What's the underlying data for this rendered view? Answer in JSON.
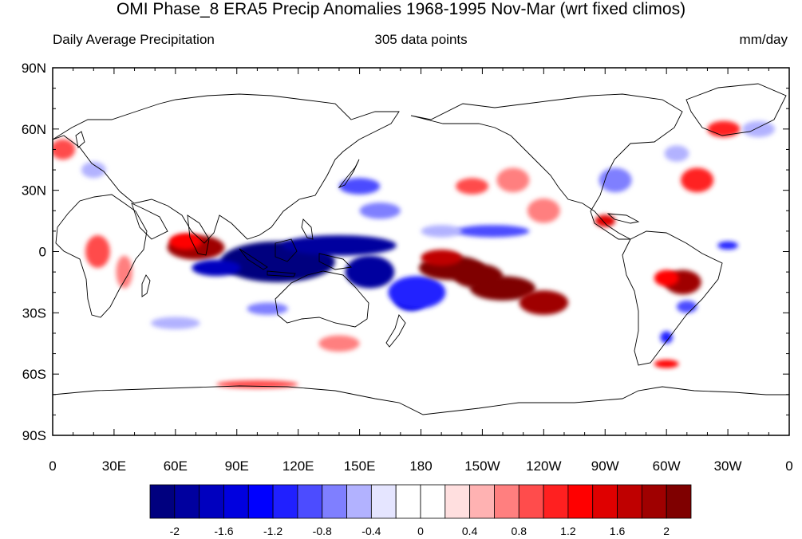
{
  "title": "OMI Phase_8 ERA5 Precip Anomalies 1968-1995 Nov-Mar (wrt fixed climos)",
  "subtitle_left": "Daily Average Precipitation",
  "subtitle_center": "305 data points",
  "subtitle_right": "mm/day",
  "map": {
    "lon_range": [
      0,
      360
    ],
    "lat_range": [
      -90,
      90
    ],
    "lat_ticks": [
      {
        "lat": 90,
        "label": "90N"
      },
      {
        "lat": 60,
        "label": "60N"
      },
      {
        "lat": 30,
        "label": "30N"
      },
      {
        "lat": 0,
        "label": "0"
      },
      {
        "lat": -30,
        "label": "30S"
      },
      {
        "lat": -60,
        "label": "60S"
      },
      {
        "lat": -90,
        "label": "90S"
      }
    ],
    "lon_ticks": [
      {
        "lon": 0,
        "label": "0"
      },
      {
        "lon": 30,
        "label": "30E"
      },
      {
        "lon": 60,
        "label": "60E"
      },
      {
        "lon": 90,
        "label": "90E"
      },
      {
        "lon": 120,
        "label": "120E"
      },
      {
        "lon": 150,
        "label": "150E"
      },
      {
        "lon": 180,
        "label": "180"
      },
      {
        "lon": 210,
        "label": "150W"
      },
      {
        "lon": 240,
        "label": "120W"
      },
      {
        "lon": 270,
        "label": "90W"
      },
      {
        "lon": 300,
        "label": "60W"
      },
      {
        "lon": 330,
        "label": "30W"
      },
      {
        "lon": 360,
        "label": "0"
      }
    ]
  },
  "colorbar": {
    "colors": [
      "#00007f",
      "#00009f",
      "#0000bf",
      "#0000df",
      "#0000ff",
      "#2020ff",
      "#4c4cff",
      "#7f7fff",
      "#b2b2ff",
      "#e5e5ff",
      "#ffffff",
      "#ffffff",
      "#ffdfdf",
      "#ffb2b2",
      "#ff7f7f",
      "#ff4c4c",
      "#ff2020",
      "#ff0000",
      "#df0000",
      "#bf0000",
      "#9f0000",
      "#7f0000"
    ],
    "labels": [
      {
        "index": 1,
        "text": "-2"
      },
      {
        "index": 3,
        "text": "-1.6"
      },
      {
        "index": 5,
        "text": "-1.2"
      },
      {
        "index": 7,
        "text": "-0.8"
      },
      {
        "index": 9,
        "text": "-0.4"
      },
      {
        "index": 11,
        "text": "0"
      },
      {
        "index": 13,
        "text": "0.4"
      },
      {
        "index": 15,
        "text": "0.8"
      },
      {
        "index": 17,
        "text": "1.2"
      },
      {
        "index": 19,
        "text": "1.6"
      },
      {
        "index": 21,
        "text": "2"
      }
    ]
  },
  "chart_data": {
    "type": "heatmap",
    "variable": "precipitation anomaly",
    "units": "mm/day",
    "levels": [
      -2,
      -1.8,
      -1.6,
      -1.4,
      -1.2,
      -1,
      -0.8,
      -0.6,
      -0.4,
      -0.2,
      0,
      0.2,
      0.4,
      0.6,
      0.8,
      1,
      1.2,
      1.4,
      1.6,
      1.8,
      2
    ],
    "anomaly_regions": [
      {
        "lon": 70,
        "lat": 2,
        "dlon": 14,
        "dlat": 6,
        "value": 1.8
      },
      {
        "lon": 65,
        "lat": 5,
        "dlon": 8,
        "dlat": 4,
        "value": 1.2
      },
      {
        "lon": 22,
        "lat": 0,
        "dlon": 6,
        "dlat": 8,
        "value": 0.8
      },
      {
        "lon": 35,
        "lat": -10,
        "dlon": 4,
        "dlat": 8,
        "value": 0.6
      },
      {
        "lon": 110,
        "lat": -5,
        "dlon": 28,
        "dlat": 10,
        "value": -2.2
      },
      {
        "lon": 140,
        "lat": 3,
        "dlon": 28,
        "dlat": 5,
        "value": -2.0
      },
      {
        "lon": 155,
        "lat": -10,
        "dlon": 12,
        "dlat": 8,
        "value": -2.0
      },
      {
        "lon": 80,
        "lat": -8,
        "dlon": 12,
        "dlat": 4,
        "value": -1.8
      },
      {
        "lon": 175,
        "lat": -23,
        "dlon": 8,
        "dlat": 6,
        "value": -1.6
      },
      {
        "lon": 105,
        "lat": -28,
        "dlon": 10,
        "dlat": 3,
        "value": -0.8
      },
      {
        "lon": 178,
        "lat": -20,
        "dlon": 14,
        "dlat": 8,
        "value": -1.2
      },
      {
        "lon": 195,
        "lat": -8,
        "dlon": 16,
        "dlat": 6,
        "value": 2.2
      },
      {
        "lon": 220,
        "lat": -18,
        "dlon": 16,
        "dlat": 6,
        "value": 2.0
      },
      {
        "lon": 240,
        "lat": -25,
        "dlon": 12,
        "dlat": 6,
        "value": 1.8
      },
      {
        "lon": 208,
        "lat": -12,
        "dlon": 12,
        "dlat": 6,
        "value": 2.0
      },
      {
        "lon": 190,
        "lat": -3,
        "dlon": 10,
        "dlat": 4,
        "value": 1.6
      },
      {
        "lon": 308,
        "lat": -15,
        "dlon": 9,
        "dlat": 6,
        "value": 1.8
      },
      {
        "lon": 300,
        "lat": -13,
        "dlon": 6,
        "dlat": 4,
        "value": 1.2
      },
      {
        "lon": 310,
        "lat": -27,
        "dlon": 5,
        "dlat": 3,
        "value": -1.0
      },
      {
        "lon": 150,
        "lat": 32,
        "dlon": 10,
        "dlat": 4,
        "value": -1.0
      },
      {
        "lon": 160,
        "lat": 20,
        "dlon": 10,
        "dlat": 4,
        "value": -0.8
      },
      {
        "lon": 215,
        "lat": 10,
        "dlon": 18,
        "dlat": 3,
        "value": -1.0
      },
      {
        "lon": 190,
        "lat": 10,
        "dlon": 10,
        "dlat": 3,
        "value": -0.6
      },
      {
        "lon": 205,
        "lat": 32,
        "dlon": 8,
        "dlat": 4,
        "value": 0.8
      },
      {
        "lon": 225,
        "lat": 35,
        "dlon": 8,
        "dlat": 6,
        "value": 0.6
      },
      {
        "lon": 240,
        "lat": 20,
        "dlon": 8,
        "dlat": 6,
        "value": 0.6
      },
      {
        "lon": 275,
        "lat": 35,
        "dlon": 8,
        "dlat": 6,
        "value": -0.8
      },
      {
        "lon": 315,
        "lat": 35,
        "dlon": 8,
        "dlat": 6,
        "value": 1.0
      },
      {
        "lon": 305,
        "lat": 48,
        "dlon": 6,
        "dlat": 4,
        "value": -0.6
      },
      {
        "lon": 328,
        "lat": 60,
        "dlon": 8,
        "dlat": 4,
        "value": 1.0
      },
      {
        "lon": 345,
        "lat": 60,
        "dlon": 8,
        "dlat": 4,
        "value": -0.6
      },
      {
        "lon": 5,
        "lat": 50,
        "dlon": 6,
        "dlat": 5,
        "value": 0.8
      },
      {
        "lon": 20,
        "lat": 40,
        "dlon": 6,
        "dlat": 4,
        "value": -0.6
      },
      {
        "lon": 270,
        "lat": 15,
        "dlon": 5,
        "dlat": 3,
        "value": 1.4
      },
      {
        "lon": 330,
        "lat": 3,
        "dlon": 5,
        "dlat": 2,
        "value": -1.2
      },
      {
        "lon": 60,
        "lat": -35,
        "dlon": 12,
        "dlat": 3,
        "value": -0.6
      },
      {
        "lon": 100,
        "lat": -65,
        "dlon": 20,
        "dlat": 2,
        "value": 0.8
      },
      {
        "lon": 300,
        "lat": -55,
        "dlon": 6,
        "dlat": 2,
        "value": 1.2
      },
      {
        "lon": 300,
        "lat": -42,
        "dlon": 3,
        "dlat": 3,
        "value": -1.2
      },
      {
        "lon": 140,
        "lat": -45,
        "dlon": 10,
        "dlat": 4,
        "value": 0.6
      }
    ]
  }
}
